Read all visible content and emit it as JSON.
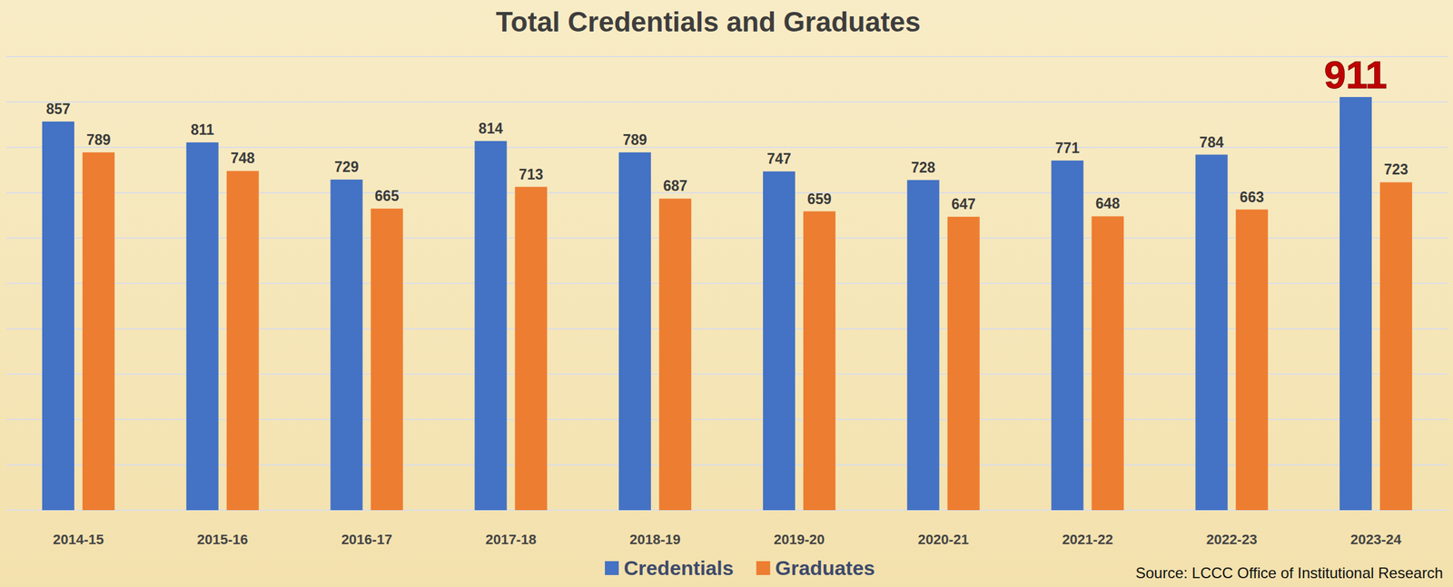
{
  "chart_data": {
    "type": "bar",
    "title": "Total Credentials and Graduates",
    "categories": [
      "2014-15",
      "2015-16",
      "2016-17",
      "2017-18",
      "2018-19",
      "2019-20",
      "2020-21",
      "2021-22",
      "2022-23",
      "2023-24"
    ],
    "series": [
      {
        "name": "Credentials",
        "color": "#4472c4",
        "values": [
          857,
          811,
          729,
          814,
          789,
          747,
          728,
          771,
          784,
          911
        ]
      },
      {
        "name": "Graduates",
        "color": "#ed7d31",
        "values": [
          789,
          748,
          665,
          713,
          687,
          659,
          647,
          648,
          663,
          723
        ]
      }
    ],
    "ylim": [
      0,
      1000
    ],
    "yticks": [
      0,
      100,
      200,
      300,
      400,
      500,
      600,
      700,
      800,
      900,
      1000
    ],
    "grid": true,
    "data_labels": true,
    "tick_labels": "x",
    "legend": "bottom",
    "source": "Source: LCCC Office of Institutional Research"
  }
}
